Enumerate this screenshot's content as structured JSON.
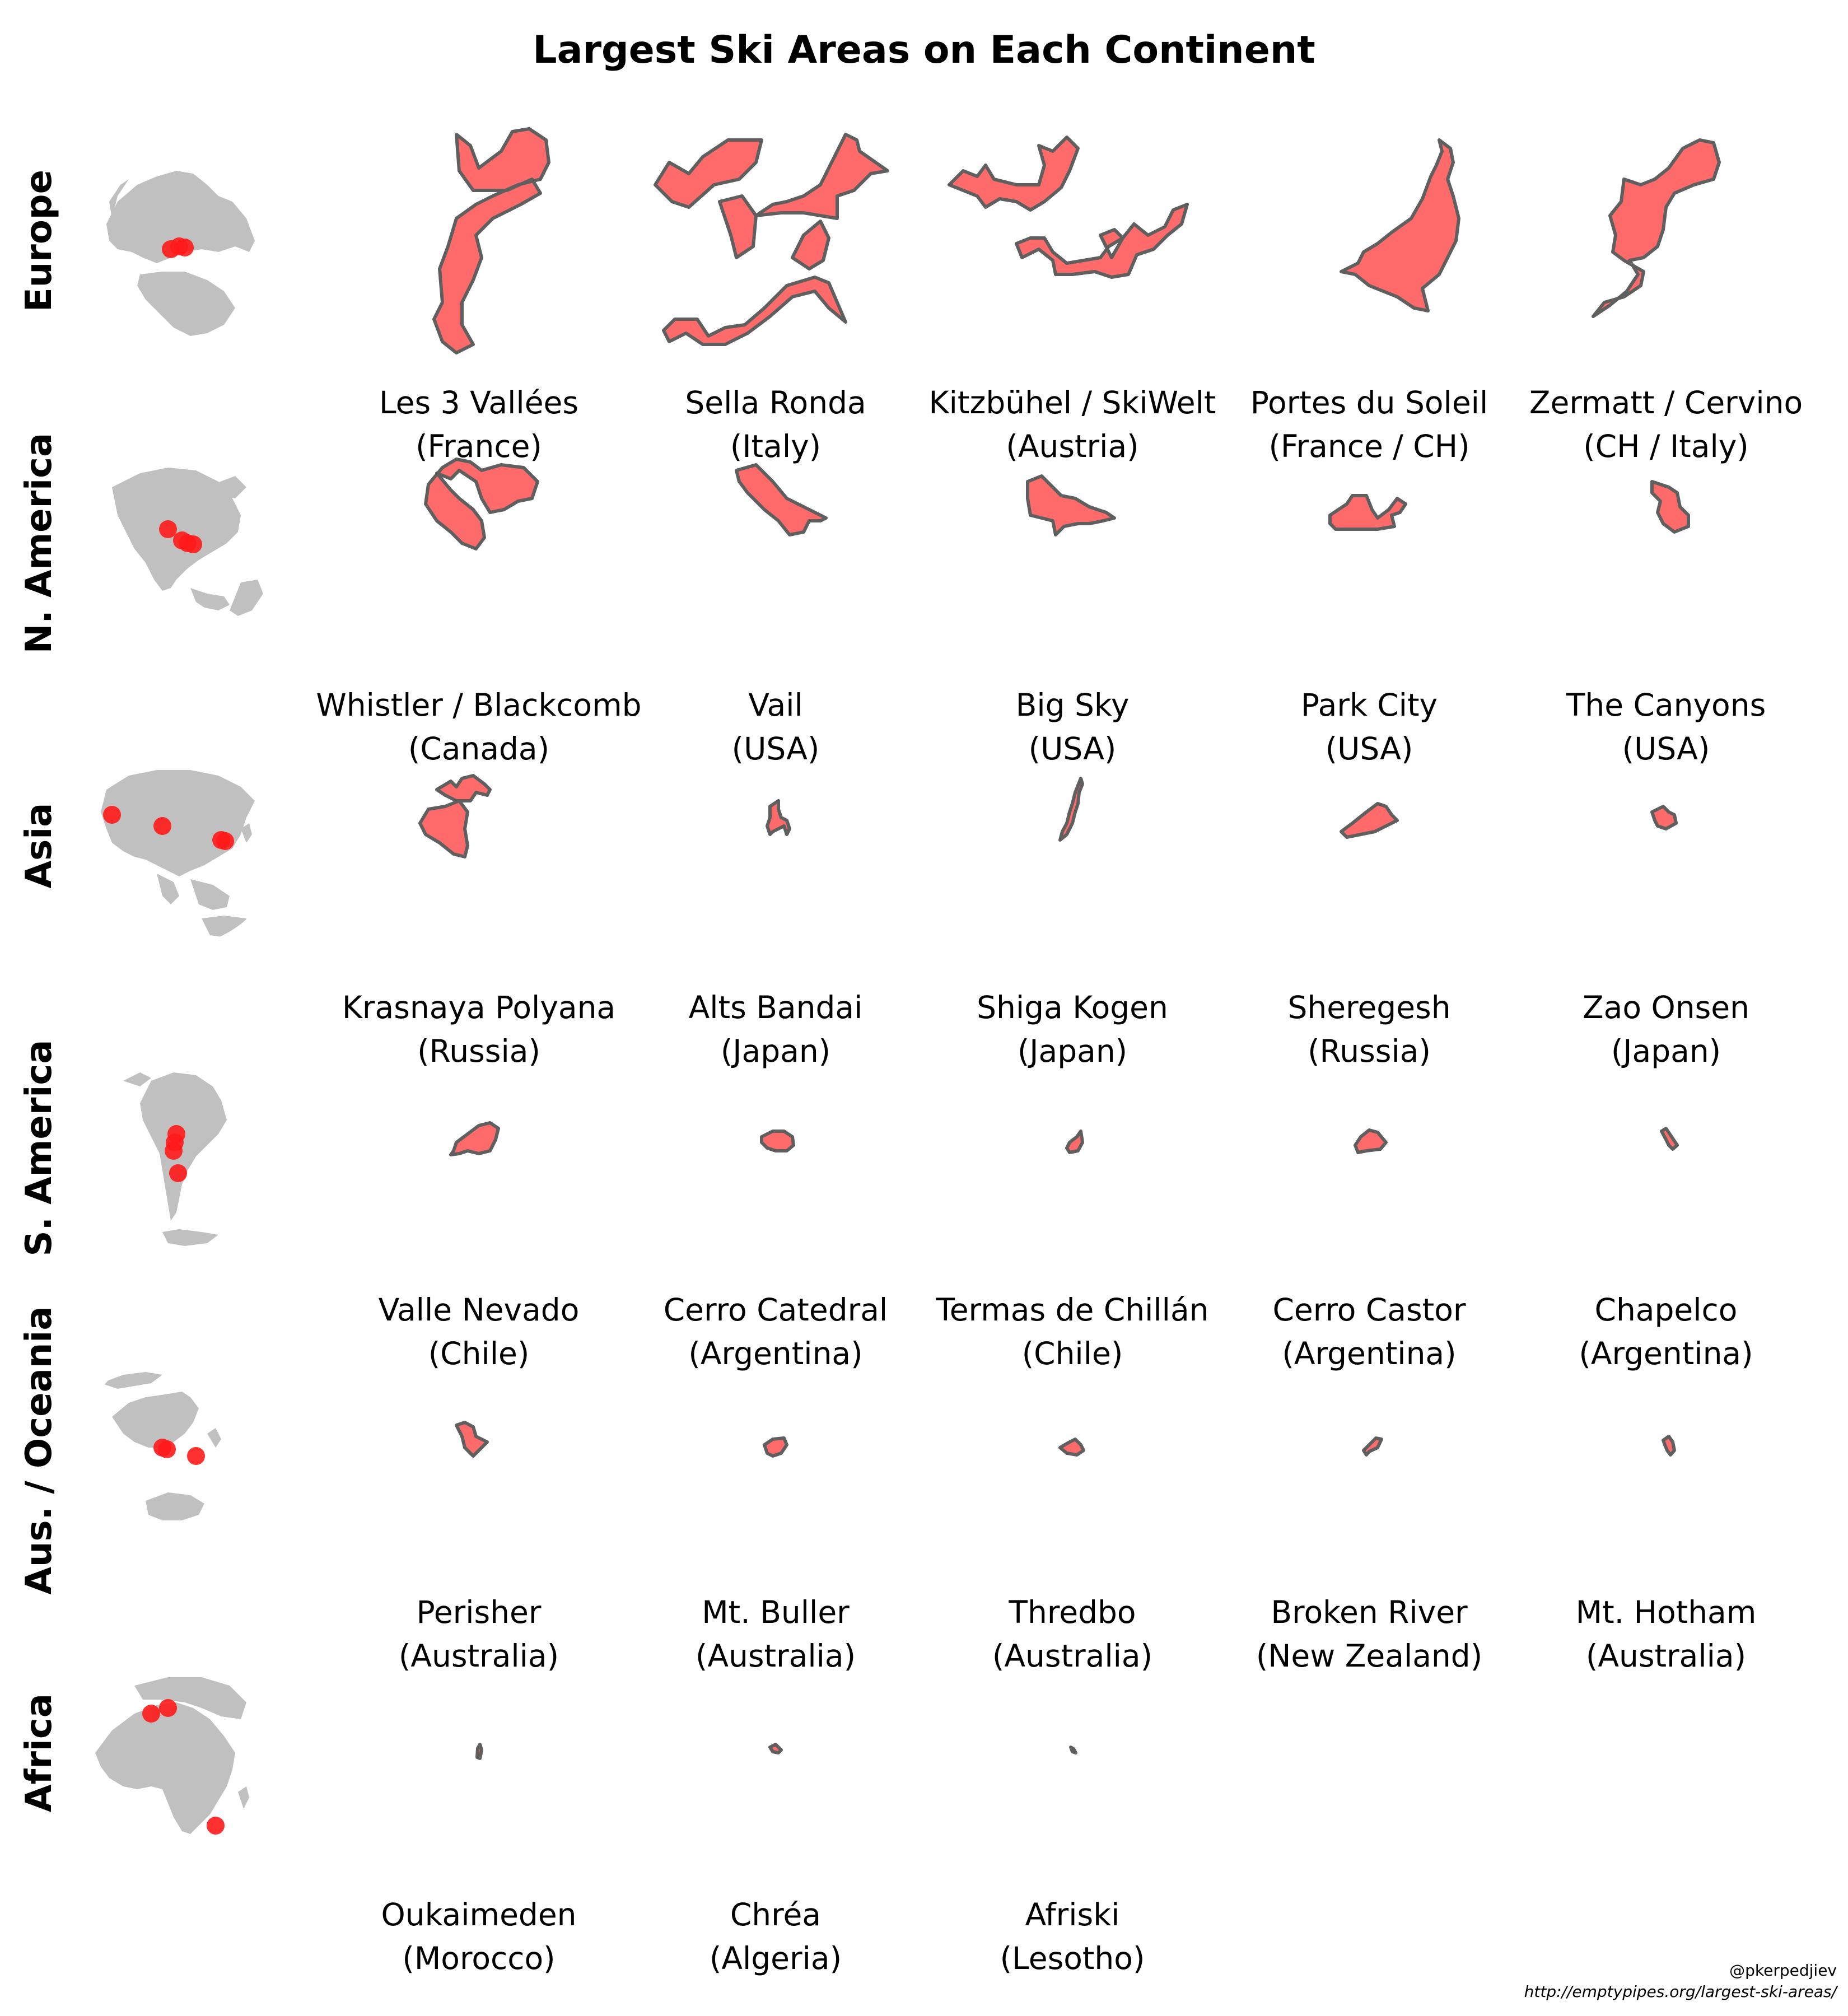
{
  "title": "Largest Ski Areas on Each Continent",
  "colors": {
    "shape_fill": "#ff6b6b",
    "shape_stroke": "#5f5f5f",
    "land": "#c0c0c0",
    "marker": "#ff1a1a"
  },
  "rows": [
    {
      "label": "Europe",
      "globe": "europe-globe",
      "areas": [
        {
          "name": "Les 3 Vallées",
          "country": "(France)",
          "shape": "s1"
        },
        {
          "name": "Sella Ronda",
          "country": "(Italy)",
          "shape": "s2"
        },
        {
          "name": "Kitzbühel / SkiWelt",
          "country": "(Austria)",
          "shape": "s3"
        },
        {
          "name": "Portes du Soleil",
          "country": "(France / CH)",
          "shape": "s4"
        },
        {
          "name": "Zermatt / Cervino",
          "country": "(CH / Italy)",
          "shape": "s5"
        }
      ]
    },
    {
      "label": "N. America",
      "globe": "north-america-globe",
      "areas": [
        {
          "name": "Whistler / Blackcomb",
          "country": "(Canada)",
          "shape": "n1"
        },
        {
          "name": "Vail",
          "country": "(USA)",
          "shape": "n2"
        },
        {
          "name": "Big Sky",
          "country": "(USA)",
          "shape": "n3"
        },
        {
          "name": "Park City",
          "country": "(USA)",
          "shape": "n4"
        },
        {
          "name": "The Canyons",
          "country": "(USA)",
          "shape": "n5"
        }
      ]
    },
    {
      "label": "Asia",
      "globe": "asia-globe",
      "areas": [
        {
          "name": "Krasnaya Polyana",
          "country": "(Russia)",
          "shape": "a1"
        },
        {
          "name": "Alts Bandai",
          "country": "(Japan)",
          "shape": "a2"
        },
        {
          "name": "Shiga Kogen",
          "country": "(Japan)",
          "shape": "a3"
        },
        {
          "name": "Sheregesh",
          "country": "(Russia)",
          "shape": "a4"
        },
        {
          "name": "Zao Onsen",
          "country": "(Japan)",
          "shape": "a5"
        }
      ]
    },
    {
      "label": "S. America",
      "globe": "south-america-globe",
      "areas": [
        {
          "name": "Valle Nevado",
          "country": "(Chile)",
          "shape": "m1"
        },
        {
          "name": "Cerro Catedral",
          "country": "(Argentina)",
          "shape": "m2"
        },
        {
          "name": "Termas de Chillán",
          "country": "(Chile)",
          "shape": "m3"
        },
        {
          "name": "Cerro Castor",
          "country": "(Argentina)",
          "shape": "m4"
        },
        {
          "name": "Chapelco",
          "country": "(Argentina)",
          "shape": "m5"
        }
      ]
    },
    {
      "label": "Aus. / Oceania",
      "globe": "oceania-globe",
      "areas": [
        {
          "name": "Perisher",
          "country": "(Australia)",
          "shape": "o1"
        },
        {
          "name": "Mt. Buller",
          "country": "(Australia)",
          "shape": "o2"
        },
        {
          "name": "Thredbo",
          "country": "(Australia)",
          "shape": "o3"
        },
        {
          "name": "Broken River",
          "country": "(New Zealand)",
          "shape": "o4"
        },
        {
          "name": "Mt. Hotham",
          "country": "(Australia)",
          "shape": "o5"
        }
      ]
    },
    {
      "label": "Africa",
      "globe": "africa-globe",
      "areas": [
        {
          "name": "Oukaimeden",
          "country": "(Morocco)",
          "shape": "f1"
        },
        {
          "name": "Chréa",
          "country": "(Algeria)",
          "shape": "f2"
        },
        {
          "name": "Afriski",
          "country": "(Lesotho)",
          "shape": "f3"
        }
      ]
    }
  ],
  "credit": {
    "handle": "@pkerpedjiev",
    "url": "http://emptypipes.org/largest-ski-areas/"
  }
}
